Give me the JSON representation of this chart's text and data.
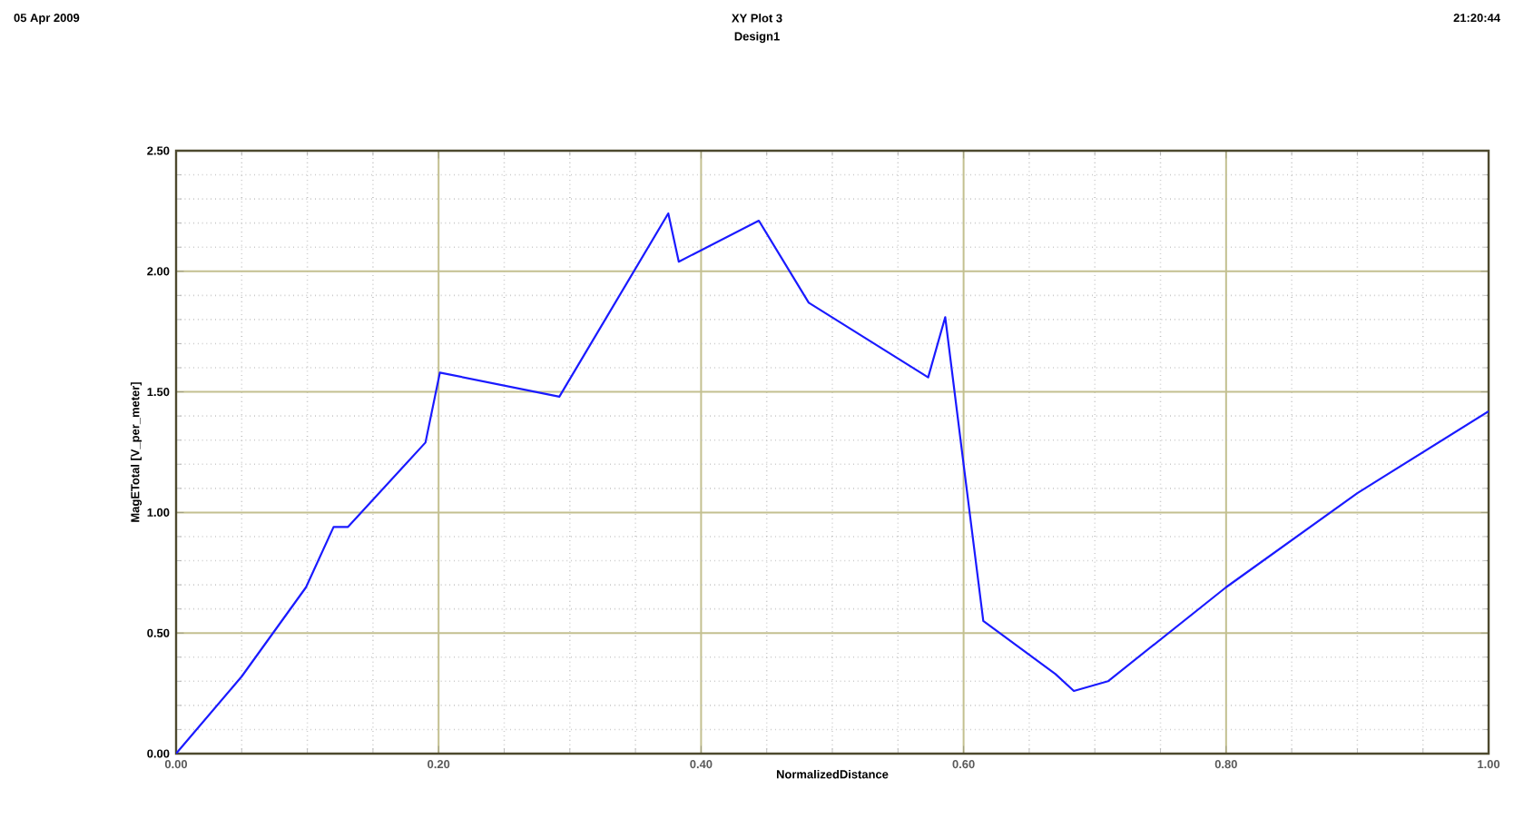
{
  "chart_data": {
    "type": "line",
    "title": "XY Plot 3",
    "subtitle": "Design1",
    "annotations": [
      "05 Apr 2009",
      "21:20:44"
    ],
    "xlabel": "NormalizedDistance",
    "ylabel": "MagETotal [V_per_meter]",
    "x": [
      0,
      0.05,
      0.099,
      0.12,
      0.131,
      0.19,
      0.201,
      0.292,
      0.375,
      0.383,
      0.444,
      0.482,
      0.573,
      0.586,
      0.6,
      0.615,
      0.67,
      0.684,
      0.71,
      0.8,
      0.9,
      1.0
    ],
    "series": [
      {
        "color": "#1a1aff",
        "values": [
          0,
          0.32,
          0.69,
          0.94,
          0.94,
          1.29,
          1.58,
          1.48,
          2.24,
          2.04,
          2.21,
          1.87,
          1.56,
          1.81,
          1.2,
          0.55,
          0.33,
          0.26,
          0.3,
          0.69,
          1.08,
          1.42
        ]
      }
    ],
    "xlim": [
      0,
      1
    ],
    "ylim": [
      0,
      2.5
    ],
    "xticks": [
      {
        "value": 0,
        "label": "0.00"
      },
      {
        "value": 0.2,
        "label": "0.20"
      },
      {
        "value": 0.4,
        "label": "0.40"
      },
      {
        "value": 0.6,
        "label": "0.60"
      },
      {
        "value": 0.8,
        "label": "0.80"
      },
      {
        "value": 1,
        "label": "1.00"
      }
    ],
    "yticks": [
      {
        "value": 0,
        "label": "0.00"
      },
      {
        "value": 0.5,
        "label": "0.50"
      },
      {
        "value": 1,
        "label": "1.00"
      },
      {
        "value": 1.5,
        "label": "1.50"
      },
      {
        "value": 2,
        "label": "2.00"
      },
      {
        "value": 2.5,
        "label": "2.50"
      }
    ],
    "grid": true,
    "marker": "none",
    "line_style": "solid"
  }
}
